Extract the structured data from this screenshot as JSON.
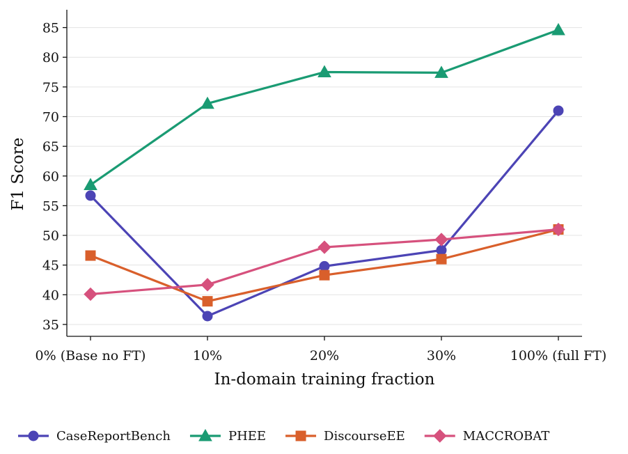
{
  "chart_data": {
    "type": "line",
    "title": "",
    "xlabel": "In-domain training fraction",
    "ylabel": "F1 Score",
    "categories": [
      "0% (Base no FT)",
      "10%",
      "20%",
      "30%",
      "100% (full FT)"
    ],
    "ylim": [
      33,
      88
    ],
    "yticks": [
      35,
      40,
      45,
      50,
      55,
      60,
      65,
      70,
      75,
      80,
      85
    ],
    "grid": "horizontal",
    "legend_position": "bottom",
    "series": [
      {
        "name": "CaseReportBench",
        "values": [
          56.7,
          36.4,
          44.8,
          47.5,
          71.0
        ],
        "color": "#4c44b5",
        "marker": "circle"
      },
      {
        "name": "PHEE",
        "values": [
          58.5,
          72.2,
          77.5,
          77.4,
          84.6
        ],
        "color": "#1a9b73",
        "marker": "triangle"
      },
      {
        "name": "DiscourseEE",
        "values": [
          46.6,
          38.9,
          43.3,
          46.0,
          51.0
        ],
        "color": "#d95f2b",
        "marker": "square"
      },
      {
        "name": "MACCROBAT",
        "values": [
          40.1,
          41.7,
          48.0,
          49.3,
          51.0
        ],
        "color": "#d6517d",
        "marker": "diamond"
      }
    ]
  }
}
